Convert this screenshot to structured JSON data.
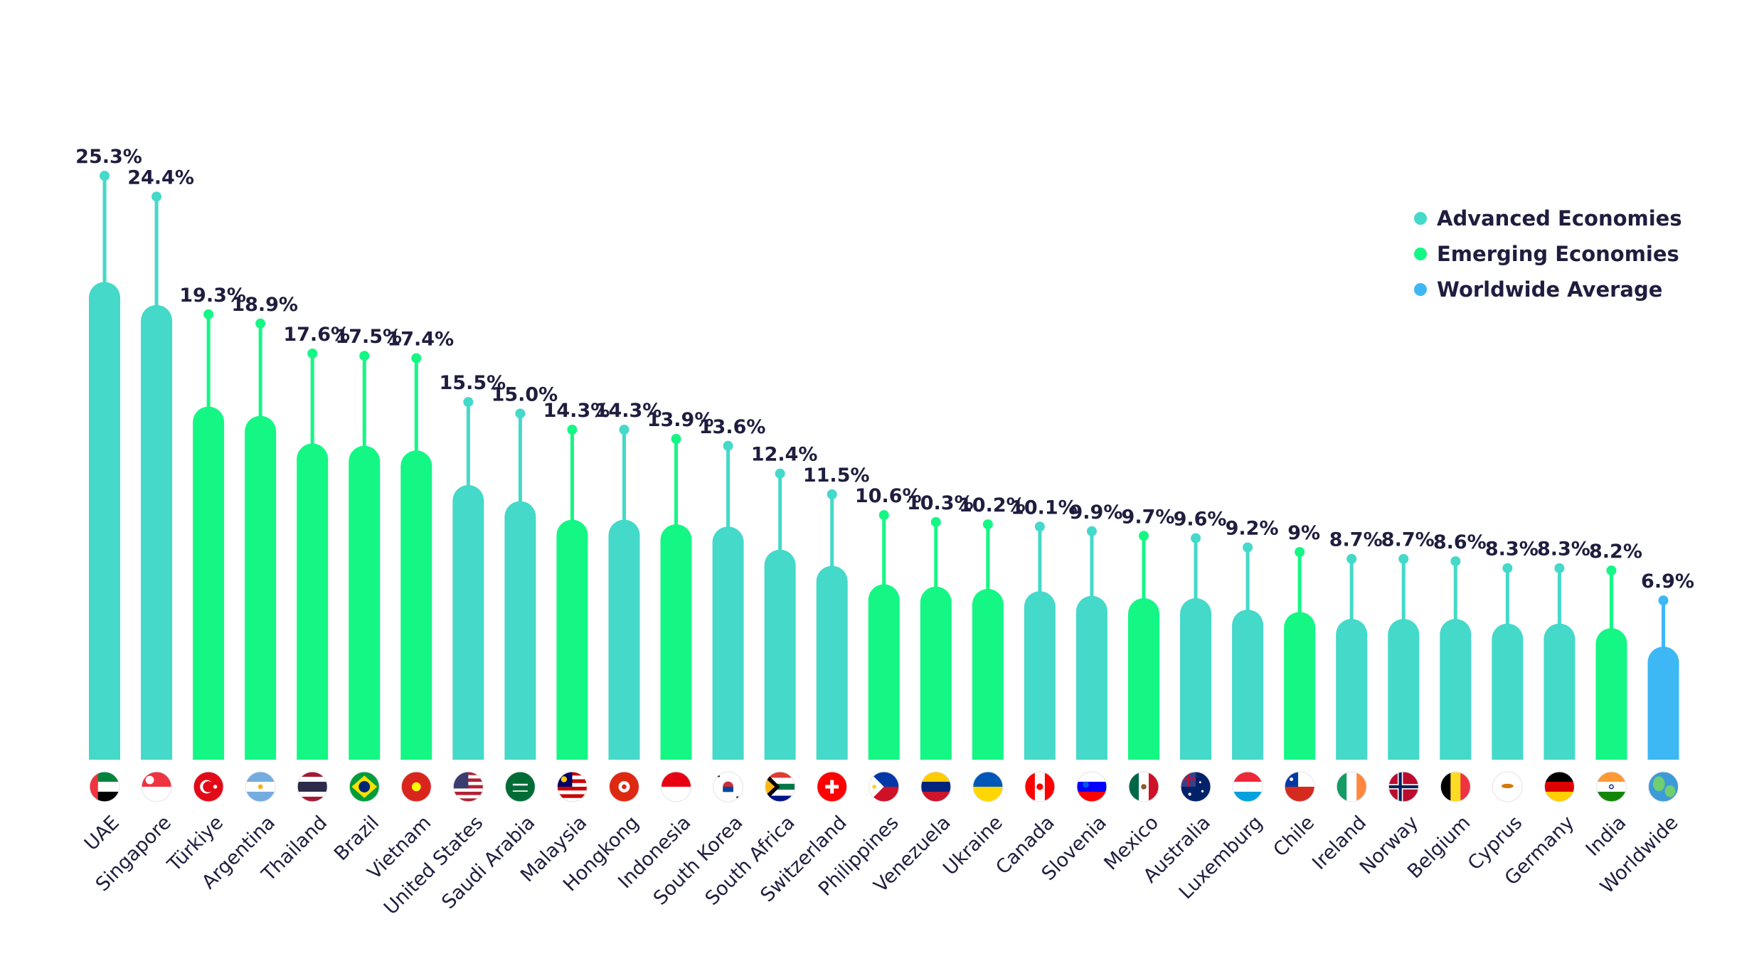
{
  "legend": {
    "items": [
      {
        "label": "Advanced Economies",
        "color": "#44d9c9"
      },
      {
        "label": "Emerging Economies",
        "color": "#14f784"
      },
      {
        "label": "Worldwide Average",
        "color": "#3db8f5"
      }
    ]
  },
  "colors": {
    "advanced": "#44d9c9",
    "emerging": "#14f784",
    "worldwide": "#3db8f5",
    "text": "#1f1d3f"
  },
  "chart_data": {
    "type": "bar",
    "categories": [
      "UAE",
      "Singapore",
      "Türkiye",
      "Argentina",
      "Thailand",
      "Brazil",
      "Vietnam",
      "United States",
      "Saudi Arabia",
      "Malaysia",
      "Hongkong",
      "Indonesia",
      "South Korea",
      "South Africa",
      "Switzerland",
      "Philippines",
      "Venezuela",
      "Ukraine",
      "Canada",
      "Slovenia",
      "Mexico",
      "Australia",
      "Luxemburg",
      "Chile",
      "Ireland",
      "Norway",
      "Belgium",
      "Cyprus",
      "Germany",
      "India",
      "Worldwide"
    ],
    "values": [
      25.3,
      24.4,
      19.3,
      18.9,
      17.6,
      17.5,
      17.4,
      15.5,
      15.0,
      14.3,
      14.3,
      13.9,
      13.6,
      12.4,
      11.5,
      10.6,
      10.3,
      10.2,
      10.1,
      9.9,
      9.7,
      9.6,
      9.2,
      9,
      8.7,
      8.7,
      8.6,
      8.3,
      8.3,
      8.2,
      6.9
    ],
    "value_labels": [
      "25.3%",
      "24.4%",
      "19.3%",
      "18.9%",
      "17.6%",
      "17.5%",
      "17.4%",
      "15.5%",
      "15.0%",
      "14.3%",
      "14.3%",
      "13.9%",
      "13.6%",
      "12.4%",
      "11.5%",
      "10.6%",
      "10.3%",
      "10.2%",
      "10.1%",
      "9.9%",
      "9.7%",
      "9.6%",
      "9.2%",
      "9%",
      "8.7%",
      "8.7%",
      "8.6%",
      "8.3%",
      "8.3%",
      "8.2%",
      "6.9%"
    ],
    "groups": [
      "advanced",
      "advanced",
      "emerging",
      "emerging",
      "emerging",
      "emerging",
      "emerging",
      "advanced",
      "advanced",
      "emerging",
      "advanced",
      "emerging",
      "advanced",
      "advanced",
      "advanced",
      "emerging",
      "emerging",
      "emerging",
      "advanced",
      "advanced",
      "emerging",
      "advanced",
      "advanced",
      "emerging",
      "advanced",
      "advanced",
      "advanced",
      "advanced",
      "advanced",
      "emerging",
      "worldwide"
    ],
    "bar_values": [
      20.7,
      19.7,
      15.3,
      14.9,
      13.7,
      13.6,
      13.4,
      11.9,
      11.2,
      10.4,
      10.4,
      10.2,
      10.1,
      9.1,
      8.4,
      7.6,
      7.5,
      7.4,
      7.3,
      7.1,
      7.0,
      7.0,
      6.5,
      6.4,
      6.1,
      6.1,
      6.1,
      5.9,
      5.9,
      5.7,
      4.9
    ],
    "flags": [
      "flag-uae",
      "flag-singapore",
      "flag-turkiye",
      "flag-argentina",
      "flag-thailand",
      "flag-brazil",
      "flag-vietnam",
      "flag-united-states",
      "flag-saudi-arabia",
      "flag-malaysia",
      "flag-hongkong",
      "flag-indonesia",
      "flag-south-korea",
      "flag-south-africa",
      "flag-switzerland",
      "flag-philippines",
      "flag-venezuela",
      "flag-ukraine",
      "flag-canada",
      "flag-slovenia",
      "flag-mexico",
      "flag-australia",
      "flag-luxemburg",
      "flag-chile",
      "flag-ireland",
      "flag-norway",
      "flag-belgium",
      "flag-cyprus",
      "flag-germany",
      "flag-india",
      "globe-icon"
    ],
    "ylim": [
      0,
      27
    ],
    "legend_position": "top-right",
    "grid": false
  }
}
